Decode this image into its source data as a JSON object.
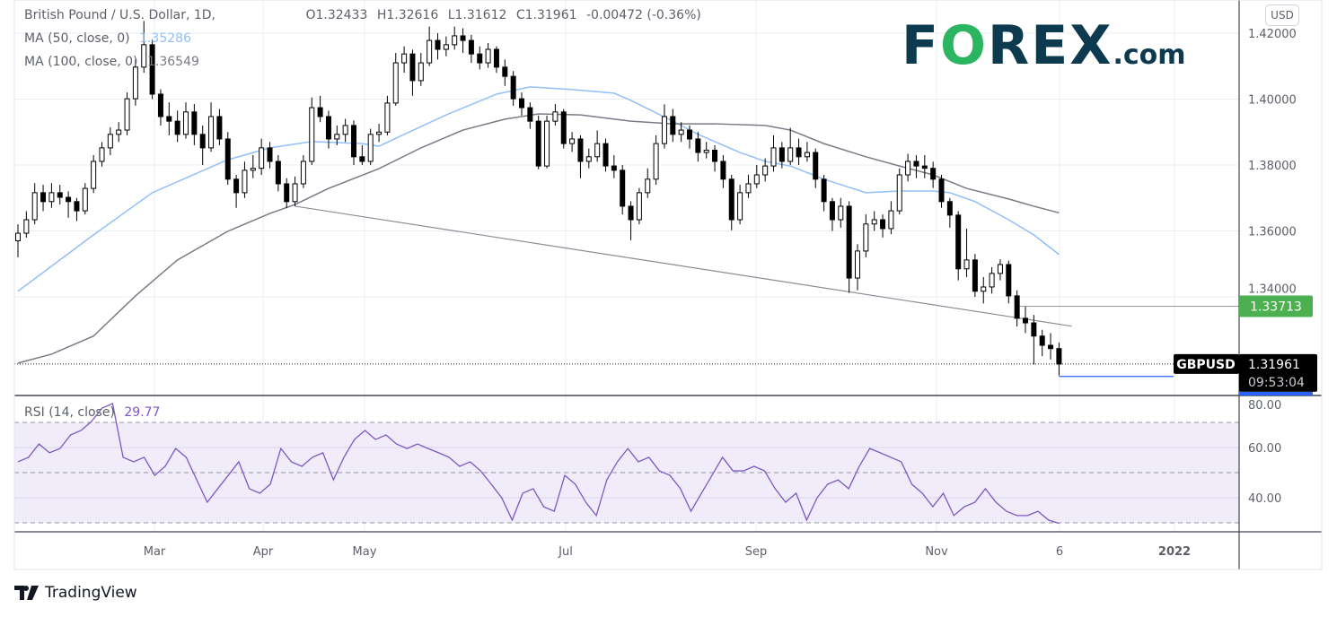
{
  "header": {
    "symbol_title": "British Pound / U.S. Dollar, 1D,",
    "open": "O1.32433",
    "high": "H1.32616",
    "low": "L1.31612",
    "close": "C1.31961",
    "change": "-0.00472 (-0.36%)",
    "ma50_label": "MA (50, close, 0)",
    "ma50_value": "1.35286",
    "ma100_label": "MA (100, close, 0)",
    "ma100_value": "1.36549",
    "rsi_label": "RSI (14, close)",
    "rsi_value": "29.77"
  },
  "logo": {
    "f": "F",
    "o": "O",
    "rex": "REX",
    "dom": ".com"
  },
  "currency_button": "USD",
  "price_tag": {
    "symbol": "GBPUSD",
    "price": "1.31961",
    "countdown": "09:53:04"
  },
  "level_tag": {
    "price": "1.33713",
    "value": 1.33713
  },
  "low_line_value": 1.31612,
  "branding": "TradingView",
  "colors": {
    "up": "#ffffff",
    "down": "#000000",
    "ma50": "#90bff9",
    "ma100": "#787b86",
    "rsi": "#7e57c2",
    "rsi_band": "#f0ecf9",
    "level": "#4caf50",
    "low_line": "#2962ff",
    "logo_dark": "#0d3a4f",
    "logo_green": "#2bb561"
  },
  "chart_data": {
    "type": "candlestick",
    "price_axis": {
      "ticks": [
        "1.42000",
        "1.40000",
        "1.38000",
        "1.36000",
        "1.34000"
      ],
      "range": [
        1.3064,
        1.4296
      ]
    },
    "time_axis": {
      "ticks": [
        "Mar",
        "Apr",
        "May",
        "Jul",
        "Sep",
        "Nov",
        "6",
        "2022"
      ]
    },
    "first_open": 1.357,
    "close": [
      1.3593,
      1.3634,
      1.3716,
      1.3689,
      1.3716,
      1.3702,
      1.3689,
      1.3661,
      1.3729,
      1.3811,
      1.3852,
      1.3893,
      1.3906,
      1.4001,
      1.4097,
      1.4165,
      1.4015,
      1.3947,
      1.3933,
      1.3893,
      1.3961,
      1.3893,
      1.3852,
      1.3947,
      1.3879,
      1.3757,
      1.3716,
      1.3784,
      1.379,
      1.3852,
      1.3811,
      1.3743,
      1.3689,
      1.3743,
      1.3811,
      1.3974,
      1.3947,
      1.3879,
      1.3893,
      1.392,
      1.3825,
      1.3811,
      1.3893,
      1.39,
      1.3988,
      1.411,
      1.4137,
      1.4056,
      1.411,
      1.4178,
      1.4151,
      1.4165,
      1.4192,
      1.4178,
      1.4137,
      1.411,
      1.4151,
      1.4097,
      1.4069,
      1.4001,
      1.3974,
      1.3933,
      1.3797,
      1.3933,
      1.3961,
      1.3865,
      1.3879,
      1.3811,
      1.3825,
      1.3865,
      1.3797,
      1.3784,
      1.3675,
      1.3634,
      1.3716,
      1.3757,
      1.3865,
      1.3947,
      1.3893,
      1.3906,
      1.3879,
      1.3838,
      1.3845,
      1.3811,
      1.3757,
      1.3634,
      1.3716,
      1.3743,
      1.377,
      1.3797,
      1.3852,
      1.3811,
      1.3852,
      1.3825,
      1.3838,
      1.3757,
      1.3689,
      1.3634,
      1.3675,
      1.3457,
      1.3539,
      1.3621,
      1.3634,
      1.3607,
      1.3661,
      1.377,
      1.3811,
      1.3797,
      1.379,
      1.3757,
      1.3689,
      1.3648,
      1.3485,
      1.3512,
      1.3417,
      1.343,
      1.3471,
      1.3498,
      1.3403,
      1.3335,
      1.3321,
      1.3281,
      1.3253,
      1.3243,
      1.31961
    ],
    "high": [
      1.362,
      1.366,
      1.3745,
      1.374,
      1.3745,
      1.374,
      1.372,
      1.37,
      1.3745,
      1.383,
      1.387,
      1.3915,
      1.393,
      1.402,
      1.412,
      1.4237,
      1.418,
      1.403,
      1.399,
      1.3965,
      1.399,
      1.3985,
      1.392,
      1.399,
      1.397,
      1.39,
      1.377,
      1.381,
      1.383,
      1.388,
      1.387,
      1.383,
      1.376,
      1.3765,
      1.383,
      1.4005,
      1.401,
      1.3965,
      1.392,
      1.394,
      1.3935,
      1.386,
      1.391,
      1.3925,
      1.401,
      1.414,
      1.416,
      1.415,
      1.414,
      1.422,
      1.42,
      1.419,
      1.422,
      1.4215,
      1.4195,
      1.416,
      1.417,
      1.416,
      1.412,
      1.4085,
      1.402,
      1.399,
      1.395,
      1.395,
      1.3985,
      1.397,
      1.39,
      1.389,
      1.385,
      1.3905,
      1.388,
      1.383,
      1.38,
      1.369,
      1.373,
      1.379,
      1.389,
      1.3984,
      1.397,
      1.393,
      1.392,
      1.39,
      1.387,
      1.386,
      1.383,
      1.377,
      1.374,
      1.377,
      1.38,
      1.382,
      1.389,
      1.387,
      1.3913,
      1.388,
      1.387,
      1.385,
      1.377,
      1.37,
      1.37,
      1.369,
      1.356,
      1.365,
      1.366,
      1.365,
      1.369,
      1.379,
      1.3834,
      1.383,
      1.383,
      1.381,
      1.377,
      1.37,
      1.366,
      1.3607,
      1.353,
      1.346,
      1.349,
      1.3514,
      1.351,
      1.342,
      1.337,
      1.3345,
      1.33,
      1.329,
      1.32616
    ],
    "low": [
      1.352,
      1.358,
      1.362,
      1.366,
      1.367,
      1.368,
      1.364,
      1.363,
      1.365,
      1.3715,
      1.3795,
      1.383,
      1.387,
      1.389,
      1.398,
      1.408,
      1.4,
      1.392,
      1.389,
      1.387,
      1.388,
      1.386,
      1.38,
      1.384,
      1.386,
      1.374,
      1.367,
      1.37,
      1.376,
      1.377,
      1.379,
      1.372,
      1.3669,
      1.3675,
      1.373,
      1.38,
      1.393,
      1.385,
      1.386,
      1.387,
      1.38,
      1.38,
      1.38,
      1.387,
      1.389,
      1.398,
      1.408,
      1.401,
      1.404,
      1.41,
      1.412,
      1.413,
      1.415,
      1.414,
      1.411,
      1.409,
      1.4095,
      1.408,
      1.404,
      1.398,
      1.395,
      1.391,
      1.3787,
      1.379,
      1.392,
      1.385,
      1.384,
      1.376,
      1.379,
      1.381,
      1.378,
      1.376,
      1.365,
      1.3572,
      1.362,
      1.37,
      1.374,
      1.385,
      1.387,
      1.387,
      1.385,
      1.381,
      1.382,
      1.378,
      1.373,
      1.3602,
      1.362,
      1.37,
      1.373,
      1.375,
      1.378,
      1.379,
      1.38,
      1.38,
      1.381,
      1.373,
      1.366,
      1.36,
      1.361,
      1.3412,
      1.342,
      1.352,
      1.36,
      1.358,
      1.359,
      1.365,
      1.375,
      1.376,
      1.376,
      1.373,
      1.367,
      1.361,
      1.345,
      1.346,
      1.34,
      1.338,
      1.341,
      1.345,
      1.338,
      1.331,
      1.329,
      1.3195,
      1.322,
      1.321,
      1.31612
    ],
    "ma50": [
      [
        0,
        1.3417
      ],
      [
        9,
        1.3588
      ],
      [
        16,
        1.3716
      ],
      [
        25,
        1.3816
      ],
      [
        30,
        1.3852
      ],
      [
        35,
        1.3871
      ],
      [
        41,
        1.3865
      ],
      [
        43,
        1.3857
      ],
      [
        46,
        1.3893
      ],
      [
        51,
        1.3952
      ],
      [
        57,
        1.4015
      ],
      [
        61,
        1.4037
      ],
      [
        66,
        1.4029
      ],
      [
        71,
        1.4018
      ],
      [
        73,
        1.3996
      ],
      [
        78,
        1.3933
      ],
      [
        81,
        1.3893
      ],
      [
        86,
        1.3838
      ],
      [
        89,
        1.3811
      ],
      [
        92,
        1.3797
      ],
      [
        96,
        1.3757
      ],
      [
        101,
        1.3716
      ],
      [
        105,
        1.3721
      ],
      [
        109,
        1.3721
      ],
      [
        111,
        1.3716
      ],
      [
        114,
        1.3689
      ],
      [
        118,
        1.3634
      ],
      [
        121,
        1.3588
      ],
      [
        124,
        1.35286
      ]
    ],
    "ma100": [
      [
        0,
        1.3199
      ],
      [
        4,
        1.3226
      ],
      [
        9,
        1.3281
      ],
      [
        14,
        1.3403
      ],
      [
        19,
        1.3512
      ],
      [
        25,
        1.3599
      ],
      [
        30,
        1.3653
      ],
      [
        33,
        1.368
      ],
      [
        37,
        1.3729
      ],
      [
        43,
        1.3789
      ],
      [
        48,
        1.3852
      ],
      [
        53,
        1.3906
      ],
      [
        58,
        1.3939
      ],
      [
        62,
        1.3955
      ],
      [
        67,
        1.3952
      ],
      [
        73,
        1.3933
      ],
      [
        78,
        1.3925
      ],
      [
        83,
        1.3925
      ],
      [
        89,
        1.392
      ],
      [
        92,
        1.3906
      ],
      [
        96,
        1.3865
      ],
      [
        101,
        1.3825
      ],
      [
        105,
        1.3797
      ],
      [
        109,
        1.377
      ],
      [
        113,
        1.3729
      ],
      [
        118,
        1.3697
      ],
      [
        121,
        1.3675
      ],
      [
        124,
        1.36549
      ]
    ],
    "trendline": [
      [
        33,
        1.3675
      ],
      [
        125.5,
        1.3311
      ]
    ],
    "rsi": {
      "levels": [
        70,
        50,
        30
      ],
      "ticks": [
        "80.00",
        "60.00",
        "40.00"
      ],
      "range": [
        30,
        80
      ],
      "values": [
        54.3,
        56.1,
        61.4,
        57.9,
        59.6,
        65,
        66.8,
        70.4,
        75.7,
        77.5,
        56.1,
        54.3,
        56.1,
        48.9,
        52.5,
        59.6,
        56.1,
        47.1,
        38.2,
        43.6,
        48.9,
        54.3,
        43.6,
        41.8,
        45.4,
        59.6,
        54.3,
        52.5,
        56.1,
        57.9,
        47.1,
        56.1,
        63.2,
        66.8,
        63.2,
        65,
        61.4,
        59.6,
        61.4,
        59.6,
        57.9,
        56.1,
        52.5,
        54.3,
        50.7,
        45.4,
        40,
        31.1,
        41.8,
        43.6,
        36.4,
        34.6,
        48.9,
        45.4,
        38.2,
        32.9,
        47.1,
        54.3,
        59.6,
        54.3,
        56.1,
        50.7,
        48.9,
        43.6,
        34.6,
        41.8,
        48.9,
        56.1,
        50.7,
        50.7,
        52.5,
        50.7,
        43.6,
        38.2,
        41.8,
        31.1,
        40,
        45.4,
        47.1,
        43.6,
        52.5,
        59.6,
        57.9,
        56.1,
        54.3,
        45.4,
        41.8,
        36.4,
        41.8,
        32.9,
        36.4,
        38.2,
        43.6,
        38.2,
        34.6,
        32.9,
        32.9,
        34.6,
        31.1,
        29.77
      ]
    }
  }
}
